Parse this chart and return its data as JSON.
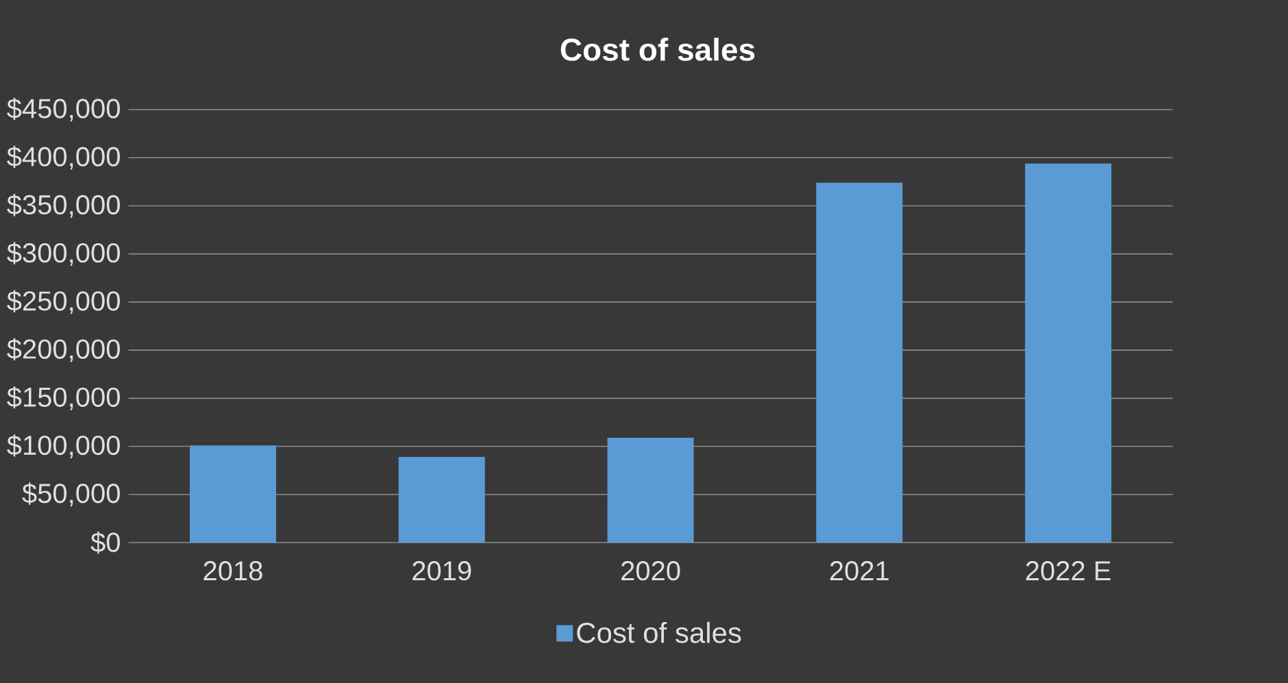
{
  "chart_data": {
    "type": "bar",
    "title": "Cost of sales",
    "categories": [
      "2018",
      "2019",
      "2020",
      "2021",
      "2022 E"
    ],
    "series": [
      {
        "name": "Cost of sales",
        "color": "#5b9bd5",
        "values": [
          101000,
          89000,
          109000,
          374000,
          394000
        ]
      }
    ],
    "ylim": [
      0,
      450000
    ],
    "yticks": [
      {
        "value": 0,
        "label": "$0"
      },
      {
        "value": 50000,
        "label": "$50,000"
      },
      {
        "value": 100000,
        "label": "$100,000"
      },
      {
        "value": 150000,
        "label": "$150,000"
      },
      {
        "value": 200000,
        "label": "$200,000"
      },
      {
        "value": 250000,
        "label": "$250,000"
      },
      {
        "value": 300000,
        "label": "$300,000"
      },
      {
        "value": 350000,
        "label": "$350,000"
      },
      {
        "value": 400000,
        "label": "$400,000"
      },
      {
        "value": 450000,
        "label": "$450,000"
      }
    ],
    "grid": "y",
    "legend": "bottom"
  }
}
